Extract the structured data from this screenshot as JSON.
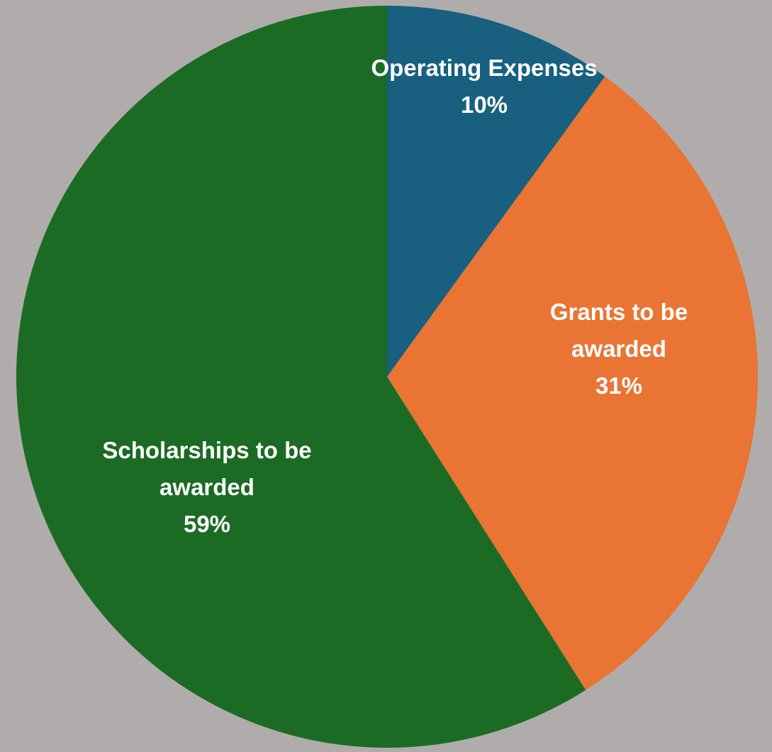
{
  "page": {
    "background": "#b0acab"
  },
  "chart_data": {
    "type": "pie",
    "start": "top",
    "direction": "clockwise",
    "slices": [
      {
        "category": "Operating Expenses",
        "value": 10,
        "label_lines": [
          "Operating Expenses",
          "10%"
        ],
        "color": "#185f80"
      },
      {
        "category": "Grants to be awarded",
        "value": 31,
        "label_lines": [
          "Grants to be",
          "awarded",
          "31%"
        ],
        "color": "#e97433"
      },
      {
        "category": "Scholarships to be awarded",
        "value": 59,
        "label_lines": [
          "Scholarships to be",
          "awarded",
          "59%"
        ],
        "color": "#1c6b25"
      }
    ],
    "legend": "none",
    "data_labels": "inside"
  }
}
